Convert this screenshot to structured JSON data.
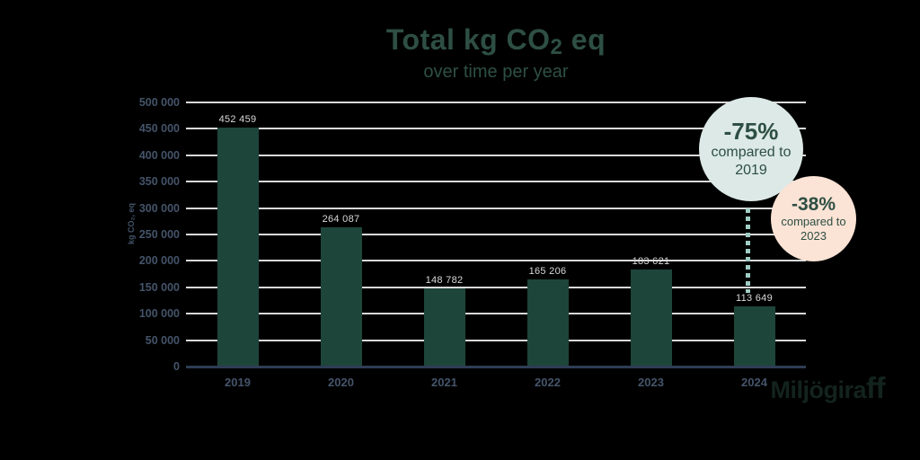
{
  "chart_data": {
    "type": "bar",
    "title": "Total kg CO₂ eq",
    "title_parts": {
      "pre": "Total kg CO",
      "sub": "2",
      "post": " eq"
    },
    "subtitle": "over time per year",
    "categories": [
      "2019",
      "2020",
      "2021",
      "2022",
      "2023",
      "2024"
    ],
    "values": [
      452459,
      264087,
      148782,
      165206,
      183621,
      113649
    ],
    "value_labels": [
      "452 459",
      "264 087",
      "148 782",
      "165 206",
      "183 621",
      "113 649"
    ],
    "xlabel": "",
    "ylabel": "kg CO₂, eq",
    "ylim": [
      0,
      500000
    ],
    "ytick_step": 50000,
    "ytick_labels": [
      "500 000",
      "450 000",
      "400 000",
      "350 000",
      "300 000",
      "250 000",
      "200 000",
      "150 000",
      "100 000",
      "50 000",
      "0"
    ],
    "grid": true,
    "legend": "none"
  },
  "badges": [
    {
      "delta": "-75%",
      "line1": "compared to",
      "line2": "2019"
    },
    {
      "delta": "-38%",
      "line1": "compared to",
      "line2": "2023"
    }
  ],
  "logo": {
    "text_pre": "Miljögira",
    "text_ff": "ff"
  },
  "colors": {
    "background": "#000000",
    "title": "#2E4F43",
    "bar": "#1E453A",
    "gridline": "#D9D9D9",
    "axis_labels": "#44546A",
    "value_labels": "#D9D9D9",
    "axis_line": "#2F3D55",
    "dotted": "#9FCDC4",
    "badge1_bg": "#DCE9E6",
    "badge2_bg": "#FBE3D5",
    "badge_text": "#2E4F43",
    "logo": "#13231E"
  }
}
